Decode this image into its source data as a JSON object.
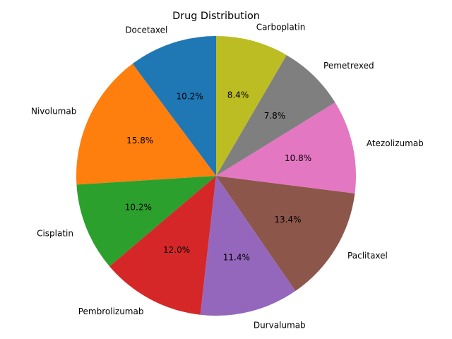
{
  "chart_data": {
    "type": "pie",
    "title": "Drug Distribution",
    "start_angle_deg": 90,
    "direction": "counterclockwise",
    "slices": [
      {
        "label": "Docetaxel",
        "value": 10.2,
        "pct_label": "10.2%",
        "color": "#1f77b4"
      },
      {
        "label": "Nivolumab",
        "value": 15.8,
        "pct_label": "15.8%",
        "color": "#ff7f0e"
      },
      {
        "label": "Cisplatin",
        "value": 10.2,
        "pct_label": "10.2%",
        "color": "#2ca02c"
      },
      {
        "label": "Pembrolizumab",
        "value": 12.0,
        "pct_label": "12.0%",
        "color": "#d62728"
      },
      {
        "label": "Durvalumab",
        "value": 11.4,
        "pct_label": "11.4%",
        "color": "#9467bd"
      },
      {
        "label": "Paclitaxel",
        "value": 13.4,
        "pct_label": "13.4%",
        "color": "#8c564b"
      },
      {
        "label": "Atezolizumab",
        "value": 10.8,
        "pct_label": "10.8%",
        "color": "#e377c2"
      },
      {
        "label": "Pemetrexed",
        "value": 7.8,
        "pct_label": "7.8%",
        "color": "#7f7f7f"
      },
      {
        "label": "Carboplatin",
        "value": 8.4,
        "pct_label": "8.4%",
        "color": "#bcbd22"
      }
    ]
  }
}
